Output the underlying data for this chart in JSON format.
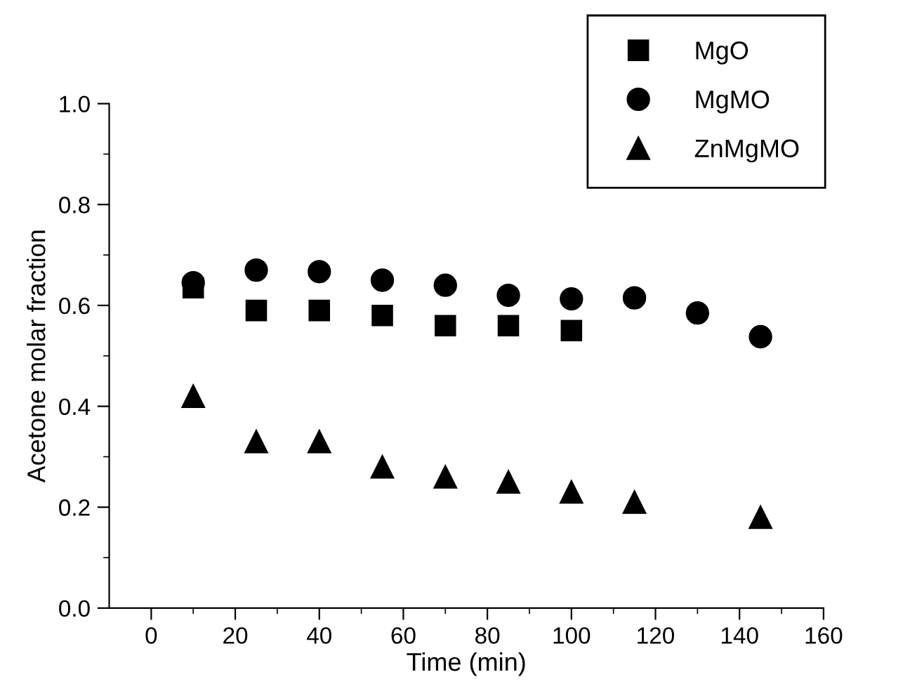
{
  "chart_data": {
    "type": "scatter",
    "xlabel": "Time (min)",
    "ylabel": "Acetone molar fraction",
    "xlim": [
      -10,
      160
    ],
    "xticks": [
      0,
      20,
      40,
      60,
      80,
      100,
      120,
      140,
      160
    ],
    "ylim": [
      0.0,
      1.0
    ],
    "yticks": [
      {
        "value": 0.0,
        "label": "0.0"
      },
      0.2,
      0.4,
      0.6,
      0.8,
      {
        "value": 1.0,
        "label": "1.0"
      }
    ],
    "grid": false,
    "legend": "top right",
    "series": [
      {
        "name": "MgO",
        "color": "#000000",
        "marker": "square",
        "x": [
          10,
          25,
          40,
          55,
          70,
          85,
          100
        ],
        "values": [
          0.635,
          0.59,
          0.59,
          0.58,
          0.56,
          0.56,
          0.55
        ]
      },
      {
        "name": "MgMO",
        "color": "#000000",
        "marker": "circle",
        "x": [
          10,
          25,
          40,
          55,
          70,
          85,
          100,
          115,
          130,
          145
        ],
        "values": [
          0.645,
          0.67,
          0.667,
          0.65,
          0.64,
          0.62,
          0.613,
          0.615,
          0.585,
          0.538
        ]
      },
      {
        "name": "ZnMgMO",
        "color": "#000000",
        "marker": "triangle",
        "x": [
          10,
          25,
          40,
          55,
          70,
          85,
          100,
          115,
          145
        ],
        "values": [
          0.42,
          0.33,
          0.33,
          0.28,
          0.26,
          0.25,
          0.23,
          0.21,
          0.18
        ]
      }
    ]
  }
}
